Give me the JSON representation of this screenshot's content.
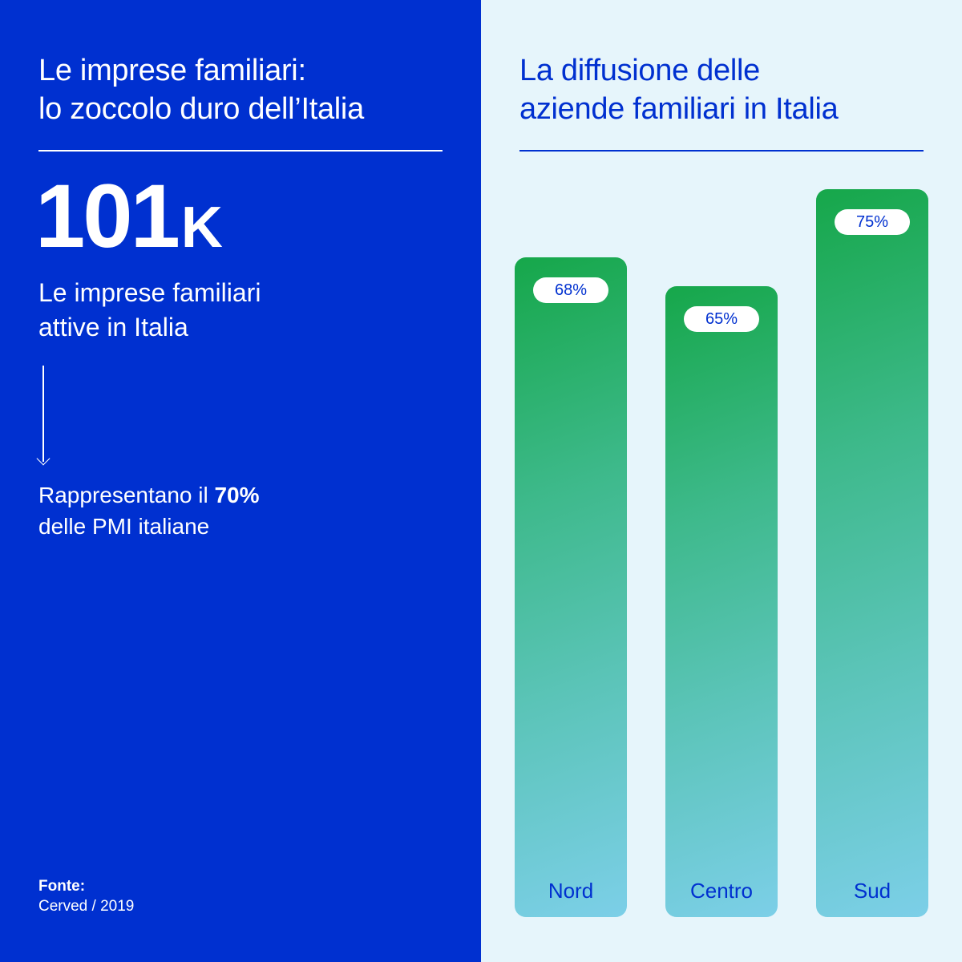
{
  "left": {
    "title_line1": "Le imprese familiari:",
    "title_line2": "lo zoccolo duro dell’Italia",
    "big_number": "101",
    "big_number_unit": "K",
    "caption_line1": "Le imprese familiari",
    "caption_line2": "attive in Italia",
    "stat_prefix": "Rappresentano il ",
    "stat_value": "70%",
    "stat_line2": "delle PMI italiane",
    "source_label": "Fonte:",
    "source_value": "Cerved / 2019"
  },
  "right": {
    "title_line1": "La diffusione delle",
    "title_line2": "aziende familiari in Italia"
  },
  "colors": {
    "brand_blue": "#0030d0",
    "panel_light": "#e6f5fb",
    "bar_top_green": "#16a74a",
    "bar_bottom_blue": "#7ccfe8"
  },
  "chart_data": {
    "type": "bar",
    "title": "La diffusione delle aziende familiari in Italia",
    "categories": [
      "Nord",
      "Centro",
      "Sud"
    ],
    "values": [
      68,
      65,
      75
    ],
    "labels": [
      "68%",
      "65%",
      "75%"
    ],
    "unit": "%",
    "xlabel": "",
    "ylabel": "",
    "grid": false,
    "legend": "none"
  }
}
